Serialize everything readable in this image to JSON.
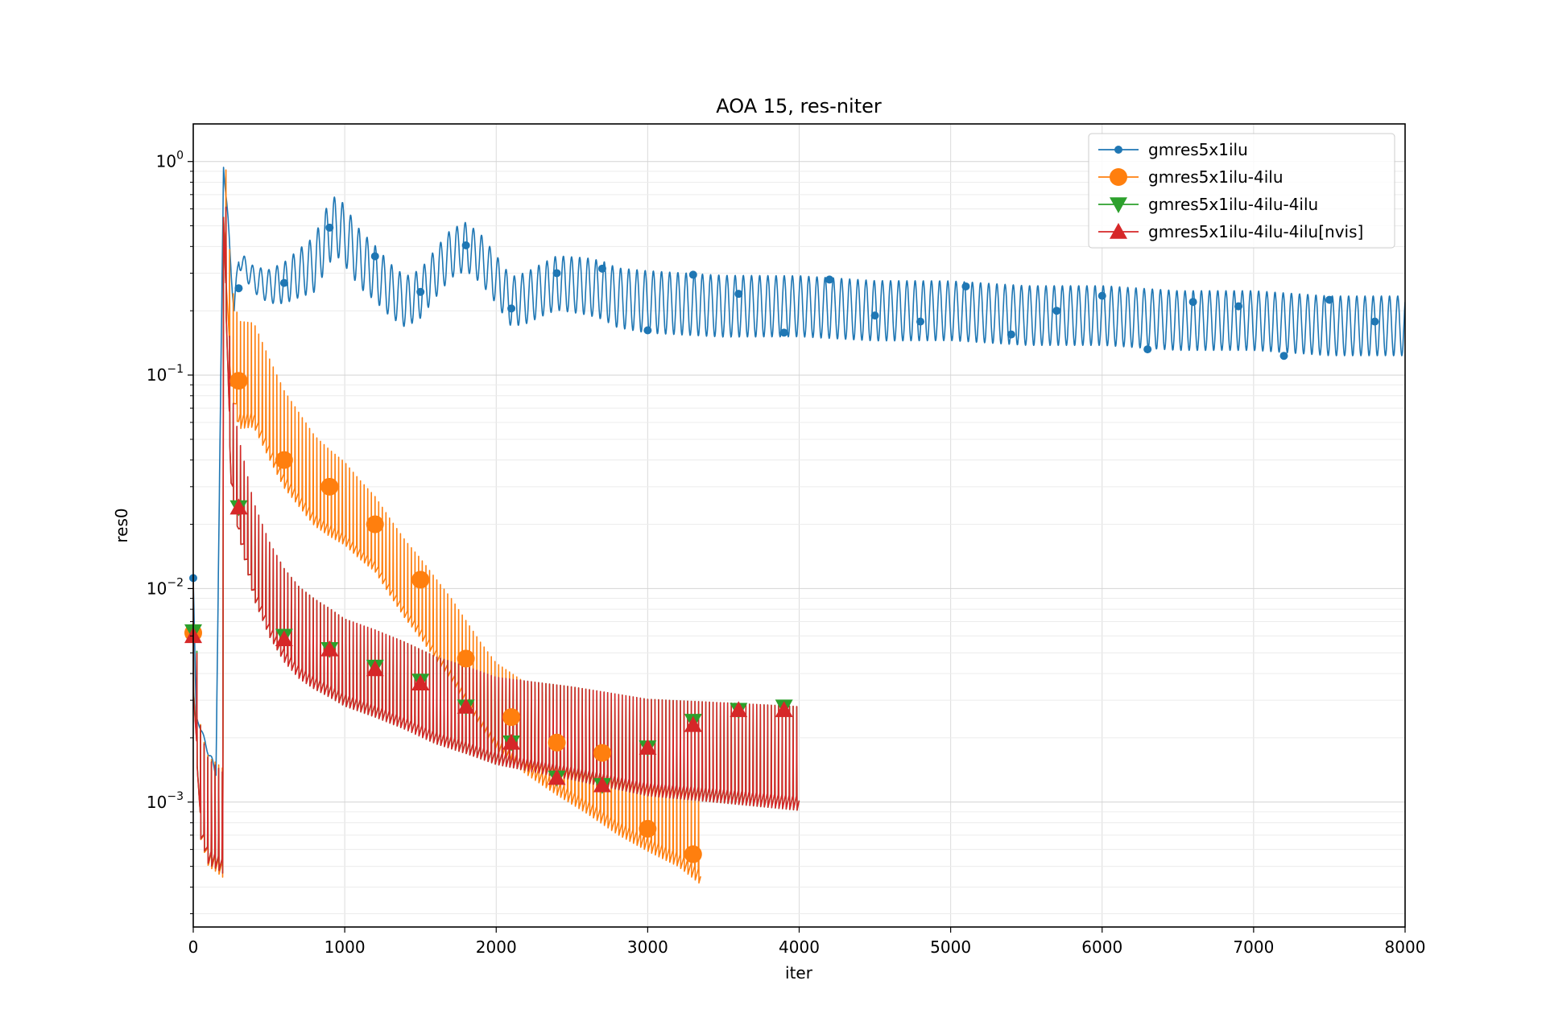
{
  "chart_data": {
    "type": "line",
    "title": "AOA 15, res-niter",
    "xlabel": "iter",
    "ylabel": "res0",
    "xlim": [
      0,
      8000
    ],
    "ylim": [
      0.00026,
      1.5
    ],
    "yscale": "log",
    "grid": true,
    "legend_position": "top-right",
    "x_ticks": [
      "0",
      "1000",
      "2000",
      "3000",
      "4000",
      "5000",
      "6000",
      "7000",
      "8000"
    ],
    "y_ticks": [
      {
        "base": "10",
        "exp": "0",
        "value": 1
      },
      {
        "base": "10",
        "exp": "−1",
        "value": 0.1
      },
      {
        "base": "10",
        "exp": "−2",
        "value": 0.01
      },
      {
        "base": "10",
        "exp": "−3",
        "value": 0.001
      }
    ],
    "series": [
      {
        "name": "gmres5x1ilu",
        "color": "#1f77b4",
        "marker": "circle-small",
        "end_x": 8000,
        "curve": [
          [
            0,
            0.011
          ],
          [
            20,
            0.0025
          ],
          [
            60,
            0.0021
          ],
          [
            100,
            0.0017
          ],
          [
            150,
            0.0014
          ],
          [
            200,
            1.0
          ],
          [
            240,
            0.4
          ],
          [
            270,
            0.2
          ],
          [
            300,
            0.35
          ],
          [
            400,
            0.28
          ],
          [
            500,
            0.26
          ],
          [
            600,
            0.27
          ],
          [
            700,
            0.3
          ],
          [
            800,
            0.33
          ],
          [
            900,
            0.47
          ],
          [
            950,
            0.5
          ],
          [
            1000,
            0.45
          ],
          [
            1100,
            0.35
          ],
          [
            1200,
            0.3
          ],
          [
            1300,
            0.25
          ],
          [
            1400,
            0.22
          ],
          [
            1500,
            0.24
          ],
          [
            1600,
            0.3
          ],
          [
            1700,
            0.37
          ],
          [
            1800,
            0.4
          ],
          [
            1900,
            0.35
          ],
          [
            2000,
            0.28
          ],
          [
            2100,
            0.22
          ],
          [
            2200,
            0.23
          ],
          [
            2300,
            0.25
          ],
          [
            2400,
            0.27
          ],
          [
            2600,
            0.26
          ],
          [
            2700,
            0.25
          ],
          [
            2800,
            0.23
          ],
          [
            3000,
            0.22
          ],
          [
            3500,
            0.21
          ],
          [
            4000,
            0.21
          ],
          [
            4500,
            0.2
          ],
          [
            5000,
            0.2
          ],
          [
            5500,
            0.19
          ],
          [
            6000,
            0.19
          ],
          [
            6500,
            0.18
          ],
          [
            7000,
            0.18
          ],
          [
            7500,
            0.17
          ],
          [
            8000,
            0.17
          ]
        ],
        "amp": [
          [
            0,
            1.0
          ],
          [
            300,
            1.1
          ],
          [
            900,
            1.4
          ],
          [
            1500,
            1.3
          ],
          [
            2000,
            1.3
          ],
          [
            2500,
            1.35
          ],
          [
            3000,
            1.4
          ],
          [
            5000,
            1.38
          ],
          [
            8000,
            1.38
          ]
        ],
        "markers": [
          [
            0,
            0.0112
          ],
          [
            300,
            0.255
          ],
          [
            600,
            0.27
          ],
          [
            900,
            0.49
          ],
          [
            1200,
            0.36
          ],
          [
            1500,
            0.245
          ],
          [
            1800,
            0.405
          ],
          [
            2100,
            0.205
          ],
          [
            2400,
            0.3
          ],
          [
            2700,
            0.315
          ],
          [
            3000,
            0.162
          ],
          [
            3300,
            0.295
          ],
          [
            3600,
            0.24
          ],
          [
            3900,
            0.158
          ],
          [
            4200,
            0.28
          ],
          [
            4500,
            0.19
          ],
          [
            4800,
            0.178
          ],
          [
            5100,
            0.26
          ],
          [
            5400,
            0.155
          ],
          [
            5700,
            0.2
          ],
          [
            6000,
            0.235
          ],
          [
            6300,
            0.132
          ],
          [
            6600,
            0.22
          ],
          [
            6900,
            0.21
          ],
          [
            7200,
            0.123
          ],
          [
            7500,
            0.225
          ],
          [
            7800,
            0.178
          ]
        ]
      },
      {
        "name": "gmres5x1ilu-4ilu",
        "color": "#ff7f0e",
        "marker": "circle-large",
        "end_x": 3350,
        "curve": [
          [
            0,
            0.0062
          ],
          [
            50,
            0.0012
          ],
          [
            100,
            0.0009
          ],
          [
            150,
            0.00085
          ],
          [
            195,
            0.0008
          ],
          [
            200,
            0.9
          ],
          [
            250,
            0.15
          ],
          [
            300,
            0.1
          ],
          [
            400,
            0.1
          ],
          [
            500,
            0.07
          ],
          [
            600,
            0.05
          ],
          [
            700,
            0.04
          ],
          [
            800,
            0.032
          ],
          [
            900,
            0.028
          ],
          [
            1000,
            0.025
          ],
          [
            1100,
            0.021
          ],
          [
            1200,
            0.018
          ],
          [
            1300,
            0.014
          ],
          [
            1400,
            0.011
          ],
          [
            1500,
            0.009
          ],
          [
            1600,
            0.0072
          ],
          [
            1700,
            0.0058
          ],
          [
            1800,
            0.0045
          ],
          [
            1900,
            0.0035
          ],
          [
            2000,
            0.0028
          ],
          [
            2200,
            0.0022
          ],
          [
            2400,
            0.0018
          ],
          [
            2600,
            0.0015
          ],
          [
            2800,
            0.0012
          ],
          [
            3000,
            0.001
          ],
          [
            3200,
            0.00085
          ],
          [
            3350,
            0.0007
          ]
        ],
        "amp": [
          [
            0,
            1.8
          ],
          [
            250,
            1.8
          ],
          [
            1200,
            1.5
          ],
          [
            2000,
            1.6
          ],
          [
            2600,
            1.7
          ],
          [
            3350,
            1.7
          ]
        ],
        "markers": [
          [
            0,
            0.0062
          ],
          [
            300,
            0.094
          ],
          [
            600,
            0.04
          ],
          [
            900,
            0.03
          ],
          [
            1200,
            0.02
          ],
          [
            1500,
            0.011
          ],
          [
            1800,
            0.0047
          ],
          [
            2100,
            0.0025
          ],
          [
            2400,
            0.0019
          ],
          [
            2700,
            0.0017
          ],
          [
            3000,
            0.00075
          ],
          [
            3300,
            0.00057
          ]
        ]
      },
      {
        "name": "gmres5x1ilu-4ilu-4ilu",
        "color": "#2ca02c",
        "marker": "triangle-down",
        "end_x": 4000,
        "curve": [
          [
            0,
            0.0063
          ],
          [
            50,
            0.0012
          ],
          [
            100,
            0.0009
          ],
          [
            150,
            0.00085
          ],
          [
            195,
            0.0008
          ],
          [
            200,
            0.9
          ],
          [
            250,
            0.05
          ],
          [
            300,
            0.03
          ],
          [
            400,
            0.015
          ],
          [
            500,
            0.01
          ],
          [
            600,
            0.0075
          ],
          [
            700,
            0.0062
          ],
          [
            800,
            0.0055
          ],
          [
            900,
            0.005
          ],
          [
            1000,
            0.0045
          ],
          [
            1200,
            0.004
          ],
          [
            1400,
            0.0035
          ],
          [
            1600,
            0.003
          ],
          [
            1800,
            0.0027
          ],
          [
            2000,
            0.0024
          ],
          [
            2500,
            0.0021
          ],
          [
            3000,
            0.0018
          ],
          [
            3500,
            0.0017
          ],
          [
            4000,
            0.0016
          ]
        ],
        "amp": [
          [
            0,
            1.8
          ],
          [
            250,
            1.7
          ],
          [
            1000,
            1.6
          ],
          [
            2000,
            1.6
          ],
          [
            2500,
            1.65
          ],
          [
            4000,
            1.75
          ]
        ],
        "markers": [
          [
            0,
            0.0063
          ],
          [
            300,
            0.024
          ],
          [
            600,
            0.006
          ],
          [
            900,
            0.0052
          ],
          [
            1200,
            0.0043
          ],
          [
            1500,
            0.0037
          ],
          [
            1800,
            0.0028
          ],
          [
            2100,
            0.0019
          ],
          [
            2400,
            0.0013
          ],
          [
            2700,
            0.0012
          ],
          [
            3000,
            0.0018
          ],
          [
            3300,
            0.0024
          ],
          [
            3600,
            0.0027
          ],
          [
            3900,
            0.0028
          ]
        ]
      },
      {
        "name": "gmres5x1ilu-4ilu-4ilu[nvis]",
        "color": "#d62728",
        "marker": "triangle-up",
        "end_x": 4000,
        "curve": [
          [
            0,
            0.006
          ],
          [
            50,
            0.0012
          ],
          [
            100,
            0.0009
          ],
          [
            150,
            0.00085
          ],
          [
            195,
            0.0008
          ],
          [
            200,
            0.9
          ],
          [
            250,
            0.05
          ],
          [
            300,
            0.03
          ],
          [
            400,
            0.015
          ],
          [
            500,
            0.01
          ],
          [
            600,
            0.0075
          ],
          [
            700,
            0.0062
          ],
          [
            800,
            0.0055
          ],
          [
            900,
            0.005
          ],
          [
            1000,
            0.0045
          ],
          [
            1200,
            0.004
          ],
          [
            1400,
            0.0035
          ],
          [
            1600,
            0.003
          ],
          [
            1800,
            0.0027
          ],
          [
            2000,
            0.0024
          ],
          [
            2500,
            0.0021
          ],
          [
            3000,
            0.0018
          ],
          [
            3500,
            0.0017
          ],
          [
            4000,
            0.0016
          ]
        ],
        "amp": [
          [
            0,
            1.8
          ],
          [
            250,
            1.7
          ],
          [
            1000,
            1.6
          ],
          [
            2000,
            1.6
          ],
          [
            2500,
            1.65
          ],
          [
            4000,
            1.75
          ]
        ],
        "markers": [
          [
            0,
            0.006
          ],
          [
            300,
            0.024
          ],
          [
            600,
            0.0058
          ],
          [
            900,
            0.0052
          ],
          [
            1200,
            0.0042
          ],
          [
            1500,
            0.0036
          ],
          [
            1800,
            0.0028
          ],
          [
            2100,
            0.0019
          ],
          [
            2400,
            0.0013
          ],
          [
            2700,
            0.0012
          ],
          [
            3000,
            0.0018
          ],
          [
            3300,
            0.0023
          ],
          [
            3600,
            0.0027
          ],
          [
            3900,
            0.0027
          ]
        ]
      }
    ]
  }
}
